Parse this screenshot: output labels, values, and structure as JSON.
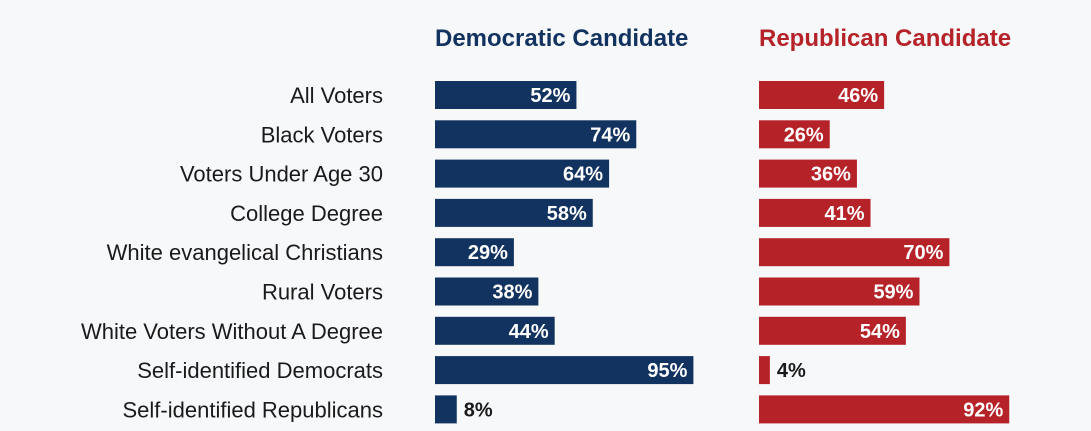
{
  "chart_data": {
    "type": "bar",
    "orientation": "horizontal",
    "title": "",
    "categories": [
      "All Voters",
      "Black Voters",
      "Voters Under Age 30",
      "College Degree",
      "White evangelical Christians",
      "Rural Voters",
      "White Voters Without A Degree",
      "Self-identified Democrats",
      "Self-identified Republicans"
    ],
    "series": [
      {
        "name": "Democratic Candidate",
        "color": "#12335f",
        "values": [
          52,
          74,
          64,
          58,
          29,
          38,
          44,
          95,
          8
        ],
        "labels": [
          "52%",
          "74%",
          "64%",
          "58%",
          "29%",
          "38%",
          "44%",
          "95%",
          "8%"
        ]
      },
      {
        "name": "Republican Candidate",
        "color": "#b52228",
        "values": [
          46,
          26,
          36,
          41,
          70,
          59,
          54,
          4,
          92
        ],
        "labels": [
          "46%",
          "26%",
          "36%",
          "41%",
          "70%",
          "59%",
          "54%",
          "4%",
          "92%"
        ]
      }
    ],
    "xlim": [
      0,
      100
    ],
    "grid": false,
    "legend": "top (column headers)"
  }
}
